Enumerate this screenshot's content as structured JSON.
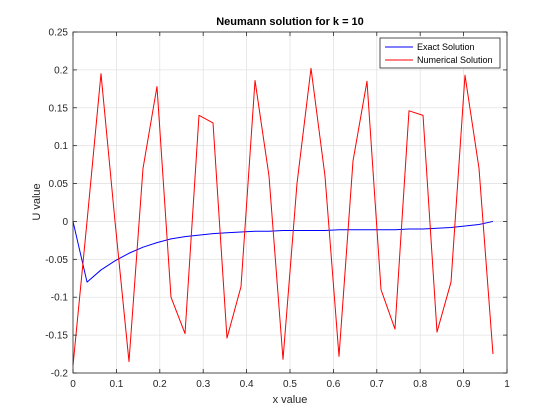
{
  "chart_data": {
    "type": "line",
    "title": "Neumann solution for k = 10",
    "xlabel": "x value",
    "ylabel": "U value",
    "xlim": [
      0,
      1
    ],
    "ylim": [
      -0.2,
      0.25
    ],
    "xticks": [
      0,
      0.1,
      0.2,
      0.3,
      0.4,
      0.5,
      0.6,
      0.7,
      0.8,
      0.9,
      1
    ],
    "xtick_labels": [
      "0",
      "0.1",
      "0.2",
      "0.3",
      "0.4",
      "0.5",
      "0.6",
      "0.7",
      "0.8",
      "0.9",
      "1"
    ],
    "yticks": [
      -0.2,
      -0.15,
      -0.1,
      -0.05,
      0,
      0.05,
      0.1,
      0.15,
      0.2,
      0.25
    ],
    "ytick_labels": [
      "-0.2",
      "-0.15",
      "-0.1",
      "-0.05",
      "0",
      "0.05",
      "0.1",
      "0.15",
      "0.2",
      "0.25"
    ],
    "grid": true,
    "legend_position": "top-right",
    "series": [
      {
        "name": "Exact Solution",
        "color": "#0000ff",
        "x": [
          0,
          0.0323,
          0.0645,
          0.0968,
          0.129,
          0.1613,
          0.1935,
          0.2258,
          0.2581,
          0.2903,
          0.3226,
          0.3548,
          0.3871,
          0.4194,
          0.4516,
          0.4839,
          0.5161,
          0.5484,
          0.5806,
          0.6129,
          0.6452,
          0.6774,
          0.7097,
          0.7419,
          0.7742,
          0.8065,
          0.8387,
          0.871,
          0.9032,
          0.9355,
          0.9677
        ],
        "y": [
          0,
          -0.08,
          -0.064,
          -0.052,
          -0.042,
          -0.034,
          -0.028,
          -0.023,
          -0.02,
          -0.018,
          -0.016,
          -0.015,
          -0.014,
          -0.013,
          -0.013,
          -0.012,
          -0.012,
          -0.012,
          -0.012,
          -0.011,
          -0.011,
          -0.011,
          -0.011,
          -0.011,
          -0.01,
          -0.01,
          -0.009,
          -0.008,
          -0.006,
          -0.004,
          0
        ]
      },
      {
        "name": "Numerical Solution",
        "color": "#ff0000",
        "x": [
          0,
          0.0323,
          0.0645,
          0.0968,
          0.129,
          0.1613,
          0.1935,
          0.2258,
          0.2581,
          0.2903,
          0.3226,
          0.3548,
          0.3871,
          0.4194,
          0.4516,
          0.4839,
          0.5161,
          0.5484,
          0.5806,
          0.6129,
          0.6452,
          0.6774,
          0.7097,
          0.7419,
          0.7742,
          0.8065,
          0.8387,
          0.871,
          0.9032,
          0.9355,
          0.9677
        ],
        "y": [
          -0.19,
          0.0,
          0.195,
          0.0,
          -0.185,
          0.07,
          0.178,
          -0.1,
          -0.148,
          0.14,
          0.13,
          -0.154,
          -0.086,
          0.186,
          0.06,
          -0.182,
          0.05,
          0.202,
          0.06,
          -0.178,
          0.08,
          0.185,
          -0.09,
          -0.142,
          0.146,
          0.14,
          -0.146,
          -0.08,
          0.193,
          0.07,
          -0.175
        ]
      }
    ]
  }
}
